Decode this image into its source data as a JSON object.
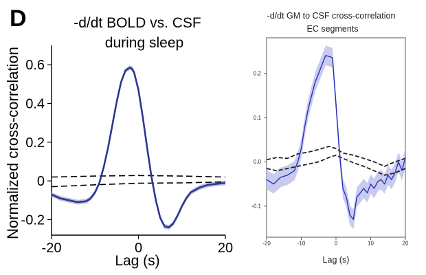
{
  "panel_letter": "D",
  "chart_data": [
    {
      "type": "line",
      "title": "-d/dt BOLD vs. CSF",
      "subtitle": "during sleep",
      "xlabel": "Lag (s)",
      "ylabel": "Normalized cross-correlation",
      "xlim": [
        -20,
        20
      ],
      "ylim": [
        -0.28,
        0.7
      ],
      "x_ticks": [
        -20,
        0,
        20
      ],
      "x_tick_labels": [
        "-20",
        "0",
        "20"
      ],
      "y_ticks": [
        0.6,
        0.4,
        0.2,
        0,
        -0.2
      ],
      "y_tick_labels": [
        "0.6",
        "0.4",
        "0.2",
        "0",
        "-0.2"
      ],
      "grid": false,
      "colors": {
        "main": "#2f3590",
        "band": "#b5b8e2",
        "null": "#000000"
      },
      "series": [
        {
          "role": "mean",
          "style": "solid",
          "band_halfwidth": 0.012,
          "x": [
            -20,
            -18,
            -16,
            -14,
            -12,
            -11,
            -10,
            -9,
            -8,
            -7,
            -6,
            -5,
            -4,
            -3,
            -2,
            -1.5,
            -1,
            0,
            1,
            2,
            3,
            4,
            5,
            6,
            7,
            8,
            9,
            10,
            11,
            12,
            14,
            16,
            18,
            20
          ],
          "y": [
            -0.07,
            -0.09,
            -0.1,
            -0.11,
            -0.105,
            -0.09,
            -0.06,
            -0.01,
            0.07,
            0.17,
            0.29,
            0.41,
            0.51,
            0.57,
            0.585,
            0.58,
            0.56,
            0.47,
            0.33,
            0.17,
            0.02,
            -0.1,
            -0.19,
            -0.235,
            -0.24,
            -0.22,
            -0.18,
            -0.13,
            -0.09,
            -0.06,
            -0.035,
            -0.02,
            -0.015,
            -0.01
          ]
        },
        {
          "role": "null-upper",
          "style": "dashed",
          "x": [
            -20,
            -10,
            0,
            10,
            20
          ],
          "y": [
            0.02,
            0.025,
            0.028,
            0.025,
            0.02
          ]
        },
        {
          "role": "null-lower",
          "style": "dashed",
          "x": [
            -20,
            -10,
            0,
            10,
            20
          ],
          "y": [
            -0.03,
            -0.02,
            -0.012,
            -0.01,
            -0.005
          ]
        }
      ]
    },
    {
      "type": "line",
      "title": "-d/dt GM to CSF cross-correlation",
      "subtitle": "EC segments",
      "xlabel": "Lag (s)",
      "ylabel": "",
      "xlim": [
        -20,
        20
      ],
      "ylim": [
        -0.17,
        0.28
      ],
      "x_ticks": [
        -20,
        -10,
        0,
        10,
        20
      ],
      "x_tick_labels": [
        "-20",
        "-10",
        "0",
        "10",
        "20"
      ],
      "y_ticks": [
        0.2,
        0.1,
        0.0,
        -0.1
      ],
      "y_tick_labels": [
        "0.2",
        "0.1",
        "0.0",
        "-0.1"
      ],
      "grid": false,
      "colors": {
        "main": "#2a30c0",
        "band": "#c3c5ec",
        "null": "#222222"
      },
      "series": [
        {
          "role": "mean",
          "style": "solid",
          "band_halfwidth": 0.022,
          "x": [
            -20,
            -18,
            -16,
            -14,
            -12,
            -11,
            -10,
            -9,
            -8,
            -7,
            -6,
            -5,
            -4,
            -3,
            -2,
            -1,
            0,
            1,
            2,
            3,
            4,
            5,
            6,
            7,
            8,
            9,
            10,
            11,
            12,
            13,
            14,
            15,
            16,
            17,
            18,
            19,
            20
          ],
          "y": [
            -0.04,
            -0.05,
            -0.035,
            -0.03,
            -0.02,
            0.0,
            0.03,
            0.08,
            0.12,
            0.15,
            0.18,
            0.2,
            0.22,
            0.24,
            0.238,
            0.235,
            0.13,
            0.02,
            -0.06,
            -0.08,
            -0.12,
            -0.13,
            -0.08,
            -0.07,
            -0.06,
            -0.07,
            -0.05,
            -0.06,
            -0.045,
            -0.04,
            -0.05,
            -0.03,
            -0.04,
            -0.025,
            0.0,
            -0.02,
            0.01
          ]
        },
        {
          "role": "null-upper",
          "style": "dashed",
          "x": [
            -20,
            -17,
            -14,
            -11,
            -8,
            -5,
            -2,
            0,
            2,
            5,
            8,
            11,
            14,
            17,
            20
          ],
          "y": [
            0.005,
            0.01,
            0.008,
            0.018,
            0.022,
            0.028,
            0.035,
            0.03,
            0.02,
            0.015,
            0.008,
            0.0,
            -0.01,
            0.0,
            0.008
          ]
        },
        {
          "role": "null-lower",
          "style": "dashed",
          "x": [
            -20,
            -17,
            -14,
            -11,
            -8,
            -5,
            -2,
            0,
            2,
            5,
            8,
            11,
            14,
            17,
            20
          ],
          "y": [
            -0.015,
            -0.02,
            -0.015,
            -0.01,
            -0.005,
            0.0,
            0.01,
            0.015,
            0.008,
            -0.002,
            -0.01,
            -0.02,
            -0.03,
            -0.025,
            -0.015
          ]
        }
      ]
    }
  ]
}
